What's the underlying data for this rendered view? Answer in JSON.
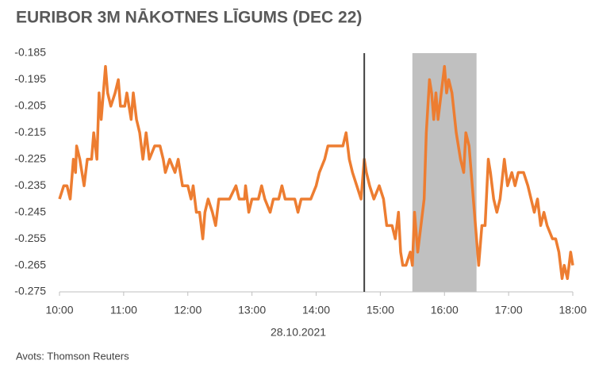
{
  "chart_data": {
    "type": "line",
    "title": "EURIBOR 3M NĀKOTNES LĪGUMS (DEC 22)",
    "x_label": "28.10.2021",
    "source": "Avots: Thomson Reuters",
    "xlim": [
      600,
      1080
    ],
    "xticks": [
      {
        "value": 600,
        "label": "10:00"
      },
      {
        "value": 660,
        "label": "11:00"
      },
      {
        "value": 720,
        "label": "12:00"
      },
      {
        "value": 780,
        "label": "13:00"
      },
      {
        "value": 840,
        "label": "14:00"
      },
      {
        "value": 900,
        "label": "15:00"
      },
      {
        "value": 960,
        "label": "16:00"
      },
      {
        "value": 1020,
        "label": "17:00"
      },
      {
        "value": 1080,
        "label": "18:00"
      }
    ],
    "ylim": [
      -0.275,
      -0.185
    ],
    "yticks": [
      -0.185,
      -0.195,
      -0.205,
      -0.215,
      -0.225,
      -0.235,
      -0.245,
      -0.255,
      -0.265,
      -0.275
    ],
    "vline": 885,
    "vline_color": "#404040",
    "shade": [
      930,
      990
    ],
    "shade_color": "#c0c0c0",
    "grid": false,
    "series": [
      {
        "color": "#ed7d31",
        "x": [
          600,
          604,
          607,
          610,
          613,
          615,
          616,
          619,
          621,
          623,
          626,
          630,
          632,
          635,
          637,
          639,
          642,
          643,
          645,
          648,
          652,
          655,
          657,
          661,
          663,
          667,
          669,
          672,
          675,
          678,
          681,
          684,
          689,
          694,
          697,
          699,
          703,
          708,
          711,
          715,
          720,
          723,
          725,
          728,
          731,
          734,
          736,
          739,
          743,
          746,
          749,
          759,
          765,
          768,
          773,
          774,
          777,
          780,
          786,
          789,
          792,
          797,
          800,
          805,
          808,
          811,
          820,
          823,
          826,
          835,
          840,
          843,
          848,
          851,
          865,
          868,
          871,
          874,
          878,
          882,
          885,
          887,
          890,
          894,
          899,
          903,
          906,
          911,
          914,
          917,
          919,
          921,
          924,
          928,
          930,
          932,
          935,
          938,
          941,
          943,
          946,
          948,
          950,
          952,
          954,
          957,
          960,
          962,
          964,
          967,
          971,
          975,
          978,
          980,
          983,
          986,
          989,
          992,
          995,
          998,
          1001,
          1003,
          1006,
          1009,
          1012,
          1016,
          1019,
          1023,
          1026,
          1029,
          1034,
          1038,
          1041,
          1044,
          1047,
          1050,
          1053,
          1056,
          1061,
          1064,
          1067,
          1070,
          1072,
          1075,
          1078,
          1080
        ],
        "values": [
          -0.24,
          -0.235,
          -0.235,
          -0.24,
          -0.225,
          -0.23,
          -0.22,
          -0.225,
          -0.23,
          -0.235,
          -0.225,
          -0.225,
          -0.215,
          -0.225,
          -0.2,
          -0.21,
          -0.195,
          -0.19,
          -0.2,
          -0.205,
          -0.2,
          -0.195,
          -0.205,
          -0.205,
          -0.2,
          -0.21,
          -0.2,
          -0.21,
          -0.215,
          -0.225,
          -0.215,
          -0.225,
          -0.22,
          -0.22,
          -0.225,
          -0.23,
          -0.225,
          -0.23,
          -0.225,
          -0.235,
          -0.235,
          -0.24,
          -0.235,
          -0.245,
          -0.245,
          -0.255,
          -0.245,
          -0.24,
          -0.245,
          -0.25,
          -0.24,
          -0.24,
          -0.235,
          -0.24,
          -0.24,
          -0.235,
          -0.245,
          -0.24,
          -0.24,
          -0.235,
          -0.24,
          -0.245,
          -0.24,
          -0.24,
          -0.235,
          -0.24,
          -0.24,
          -0.245,
          -0.24,
          -0.24,
          -0.235,
          -0.23,
          -0.225,
          -0.22,
          -0.22,
          -0.215,
          -0.225,
          -0.23,
          -0.235,
          -0.24,
          -0.225,
          -0.23,
          -0.235,
          -0.24,
          -0.235,
          -0.24,
          -0.25,
          -0.25,
          -0.255,
          -0.245,
          -0.26,
          -0.265,
          -0.265,
          -0.26,
          -0.265,
          -0.245,
          -0.26,
          -0.25,
          -0.24,
          -0.215,
          -0.195,
          -0.2,
          -0.21,
          -0.2,
          -0.21,
          -0.2,
          -0.19,
          -0.2,
          -0.195,
          -0.2,
          -0.215,
          -0.225,
          -0.23,
          -0.215,
          -0.22,
          -0.235,
          -0.25,
          -0.265,
          -0.25,
          -0.25,
          -0.225,
          -0.23,
          -0.24,
          -0.245,
          -0.24,
          -0.225,
          -0.235,
          -0.23,
          -0.235,
          -0.23,
          -0.23,
          -0.235,
          -0.24,
          -0.245,
          -0.24,
          -0.25,
          -0.245,
          -0.25,
          -0.255,
          -0.255,
          -0.26,
          -0.27,
          -0.265,
          -0.27,
          -0.26,
          -0.265
        ]
      }
    ]
  }
}
